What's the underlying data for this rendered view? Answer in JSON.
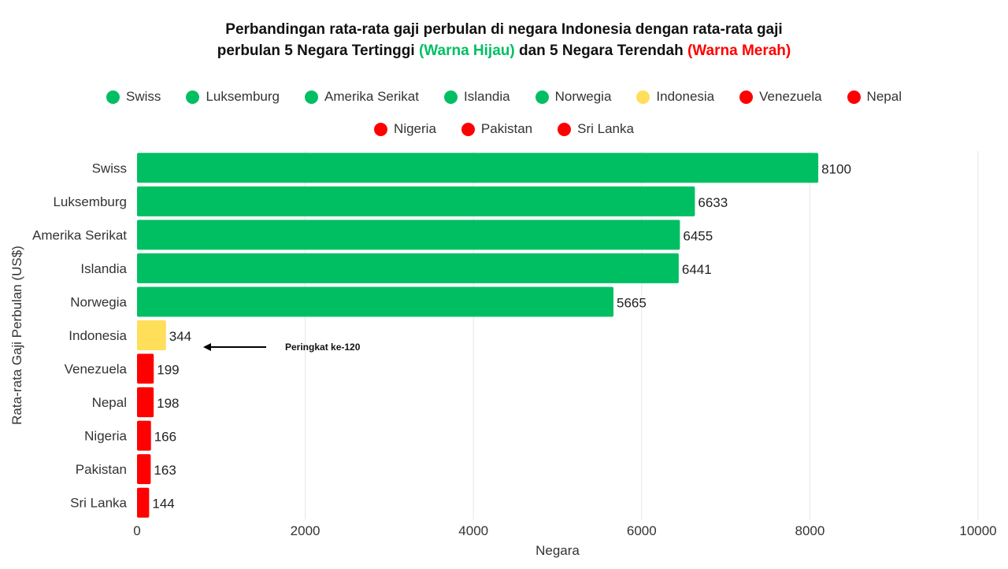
{
  "colors": {
    "green": "#00bf63",
    "yellow": "#ffde59",
    "red": "#ff0000",
    "grid": "#e6e6e6"
  },
  "title": {
    "line1": "Perbandingan rata-rata gaji perbulan di negara Indonesia dengan rata-rata gaji",
    "line2_prefix": "perbulan 5 Negara Tertinggi ",
    "green_label": "(Warna Hijau)",
    "line2_middle": " dan 5 Negara Terendah ",
    "red_label": "(Warna Merah)"
  },
  "legend": {
    "row1": [
      {
        "label": "Swiss",
        "color": "green"
      },
      {
        "label": "Luksemburg",
        "color": "green"
      },
      {
        "label": "Amerika Serikat",
        "color": "green"
      },
      {
        "label": "Islandia",
        "color": "green"
      },
      {
        "label": "Norwegia",
        "color": "green"
      },
      {
        "label": "Indonesia",
        "color": "yellow"
      },
      {
        "label": "Venezuela",
        "color": "red"
      },
      {
        "label": "Nepal",
        "color": "red"
      }
    ],
    "row2": [
      {
        "label": "Nigeria",
        "color": "red"
      },
      {
        "label": "Pakistan",
        "color": "red"
      },
      {
        "label": "Sri Lanka",
        "color": "red"
      }
    ]
  },
  "chart_data": {
    "type": "bar",
    "orientation": "horizontal",
    "categories": [
      "Swiss",
      "Luksemburg",
      "Amerika Serikat",
      "Islandia",
      "Norwegia",
      "Indonesia",
      "Venezuela",
      "Nepal",
      "Nigeria",
      "Pakistan",
      "Sri Lanka"
    ],
    "values": [
      8100,
      6633,
      6455,
      6441,
      5665,
      344,
      199,
      198,
      166,
      163,
      144
    ],
    "bar_colors": [
      "green",
      "green",
      "green",
      "green",
      "green",
      "yellow",
      "red",
      "red",
      "red",
      "red",
      "red"
    ],
    "xlabel": "Negara",
    "ylabel": "Rata-rata Gaji Perbulan (US$)",
    "xlim": [
      0,
      10000
    ],
    "xticks": [
      0,
      2000,
      4000,
      6000,
      8000,
      10000
    ],
    "grid": true,
    "legend_position": "top",
    "annotation": {
      "text": "Peringkat ke-120",
      "category": "Indonesia",
      "arrow": true
    }
  }
}
